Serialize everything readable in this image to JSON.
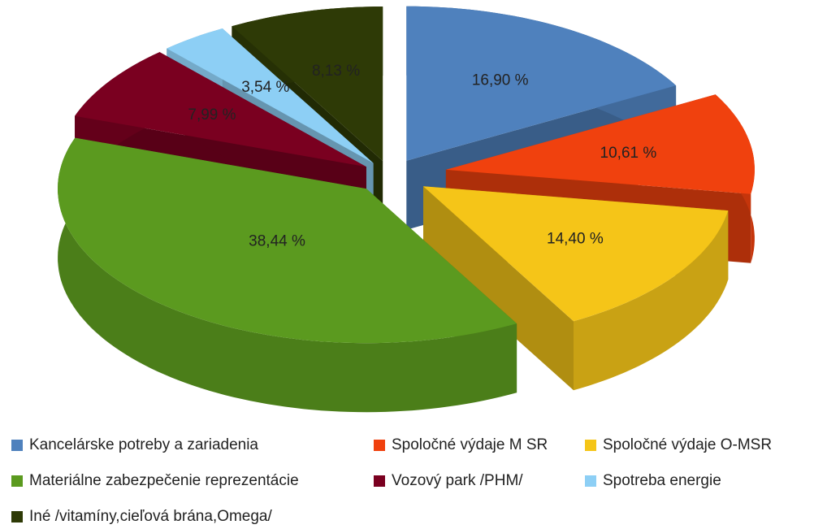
{
  "chart_data": {
    "type": "pie",
    "categories": [
      "Kancelárske potreby a zariadenia",
      "Spoločné výdaje M SR",
      "Spoločné výdaje O-MSR",
      "Materiálne zabezpečenie reprezentácie",
      "Vozový park /PHM/",
      "Spotreba energie",
      "Iné /vitamíny,cieľová brána,Omega/"
    ],
    "values": [
      16.9,
      10.61,
      14.4,
      38.44,
      7.99,
      3.54,
      8.13
    ],
    "value_labels": [
      "16,90 %",
      "10,61 %",
      "14,40 %",
      "38,44 %",
      "7,99 %",
      "3,54 %",
      "8,13 %"
    ],
    "colors": [
      "#4f81bd",
      "#f0410e",
      "#f5c518",
      "#5b9a1f",
      "#7a0020",
      "#8dcff5",
      "#2e3a06"
    ],
    "legend": "bottom"
  }
}
